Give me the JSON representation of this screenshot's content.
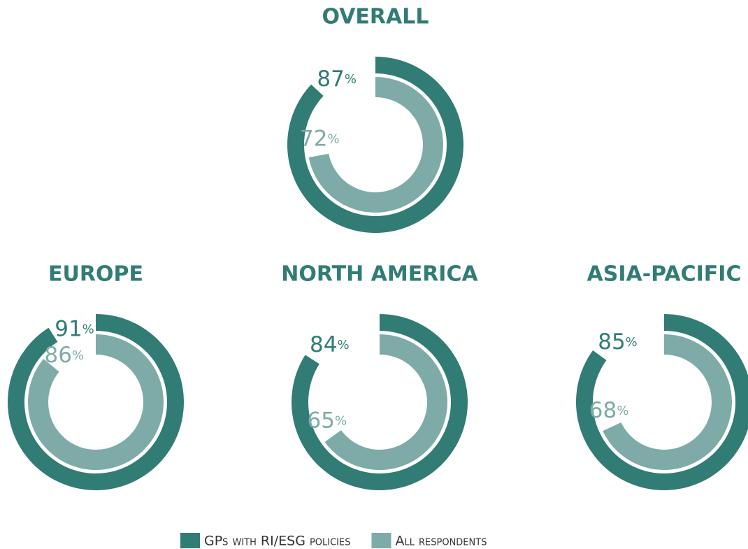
{
  "legend": {
    "items": [
      {
        "name": "GPs with RI/ESG policies",
        "color": "#317c75"
      },
      {
        "name": "All respondents",
        "color": "#7eaba7"
      }
    ]
  },
  "chart_data": [
    {
      "type": "donut",
      "title": "OVERALL",
      "values": [
        87,
        72
      ],
      "value_labels": [
        "87%",
        "72%"
      ]
    },
    {
      "type": "donut",
      "title": "EUROPE",
      "values": [
        91,
        86
      ],
      "value_labels": [
        "91%",
        "86%"
      ]
    },
    {
      "type": "donut",
      "title": "NORTH AMERICA",
      "values": [
        84,
        65
      ],
      "value_labels": [
        "84%",
        "65%"
      ]
    },
    {
      "type": "donut",
      "title": "ASIA-PACIFIC",
      "values": [
        85,
        68
      ],
      "value_labels": [
        "85%",
        "68%"
      ]
    }
  ]
}
